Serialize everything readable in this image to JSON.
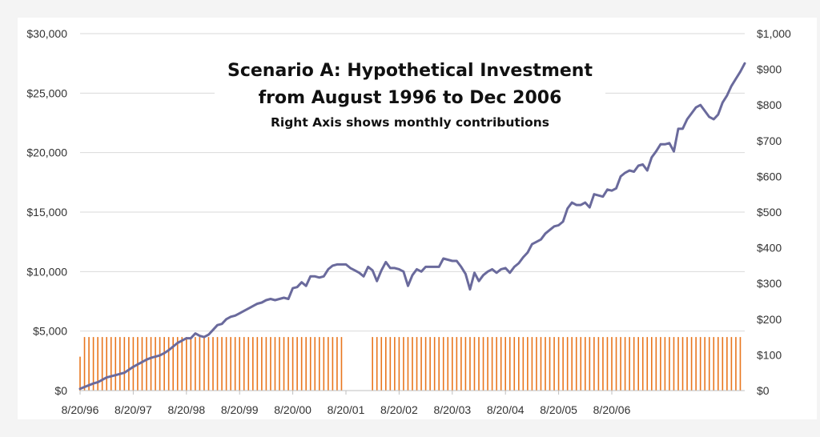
{
  "chart_data": {
    "type": "line+bar",
    "title": [
      "Scenario A: Hypothetical Investment",
      "from August 1996 to Dec 2006"
    ],
    "subtitle": "Right Axis shows monthly contributions",
    "x_tick_labels": [
      "8/20/96",
      "8/20/97",
      "8/20/98",
      "8/20/99",
      "8/20/00",
      "8/20/01",
      "8/20/02",
      "8/20/03",
      "8/20/04",
      "8/20/05",
      "8/20/06"
    ],
    "left_axis": {
      "ticks": [
        "$0",
        "$5,000",
        "$10,000",
        "$15,000",
        "$20,000",
        "$25,000",
        "$30,000"
      ],
      "range": [
        0,
        30000
      ]
    },
    "right_axis": {
      "ticks": [
        "$0",
        "$100",
        "$200",
        "$300",
        "$400",
        "$500",
        "$600",
        "$700",
        "$800",
        "$900",
        "$1,000"
      ],
      "range": [
        0,
        1000
      ]
    },
    "grid": true,
    "series": [
      {
        "kind": "line",
        "axis": "left",
        "color": "#6a6a9c",
        "points": [
          [
            "1996-08",
            150
          ],
          [
            "1996-09",
            300
          ],
          [
            "1996-10",
            450
          ],
          [
            "1996-11",
            600
          ],
          [
            "1996-12",
            700
          ],
          [
            "1997-01",
            900
          ],
          [
            "1997-02",
            1100
          ],
          [
            "1997-03",
            1200
          ],
          [
            "1997-04",
            1300
          ],
          [
            "1997-05",
            1400
          ],
          [
            "1997-06",
            1500
          ],
          [
            "1997-07",
            1750
          ],
          [
            "1997-08",
            2000
          ],
          [
            "1997-09",
            2200
          ],
          [
            "1997-10",
            2400
          ],
          [
            "1997-11",
            2600
          ],
          [
            "1997-12",
            2750
          ],
          [
            "1998-01",
            2850
          ],
          [
            "1998-02",
            2950
          ],
          [
            "1998-03",
            3150
          ],
          [
            "1998-04",
            3400
          ],
          [
            "1998-05",
            3700
          ],
          [
            "1998-06",
            4000
          ],
          [
            "1998-07",
            4200
          ],
          [
            "1998-08",
            4400
          ],
          [
            "1998-09",
            4400
          ],
          [
            "1998-10",
            4800
          ],
          [
            "1998-11",
            4600
          ],
          [
            "1998-12",
            4500
          ],
          [
            "1999-01",
            4700
          ],
          [
            "1999-02",
            5100
          ],
          [
            "1999-03",
            5500
          ],
          [
            "1999-04",
            5600
          ],
          [
            "1999-05",
            6000
          ],
          [
            "1999-06",
            6200
          ],
          [
            "1999-07",
            6300
          ],
          [
            "1999-08",
            6500
          ],
          [
            "1999-09",
            6700
          ],
          [
            "1999-10",
            6900
          ],
          [
            "1999-11",
            7100
          ],
          [
            "1999-12",
            7300
          ],
          [
            "2000-01",
            7400
          ],
          [
            "2000-02",
            7600
          ],
          [
            "2000-03",
            7700
          ],
          [
            "2000-04",
            7600
          ],
          [
            "2000-05",
            7700
          ],
          [
            "2000-06",
            7800
          ],
          [
            "2000-07",
            7700
          ],
          [
            "2000-08",
            8600
          ],
          [
            "2000-09",
            8700
          ],
          [
            "2000-10",
            9100
          ],
          [
            "2000-11",
            8800
          ],
          [
            "2000-12",
            9600
          ],
          [
            "2001-01",
            9600
          ],
          [
            "2001-02",
            9500
          ],
          [
            "2001-03",
            9600
          ],
          [
            "2001-04",
            10200
          ],
          [
            "2001-05",
            10500
          ],
          [
            "2001-06",
            10600
          ],
          [
            "2001-07",
            10600
          ],
          [
            "2001-08",
            10600
          ],
          [
            "2001-09",
            10300
          ],
          [
            "2001-10",
            10100
          ],
          [
            "2001-11",
            9900
          ],
          [
            "2001-12",
            9600
          ],
          [
            "2002-01",
            10400
          ],
          [
            "2002-02",
            10100
          ],
          [
            "2002-03",
            9200
          ],
          [
            "2002-04",
            10100
          ],
          [
            "2002-05",
            10800
          ],
          [
            "2002-06",
            10300
          ],
          [
            "2002-07",
            10300
          ],
          [
            "2002-08",
            10200
          ],
          [
            "2002-09",
            10000
          ],
          [
            "2002-10",
            8800
          ],
          [
            "2002-11",
            9700
          ],
          [
            "2002-12",
            10200
          ],
          [
            "2003-01",
            10000
          ],
          [
            "2003-02",
            10400
          ],
          [
            "2003-03",
            10400
          ],
          [
            "2003-04",
            10400
          ],
          [
            "2003-05",
            10400
          ],
          [
            "2003-06",
            11100
          ],
          [
            "2003-07",
            11000
          ],
          [
            "2003-08",
            10900
          ],
          [
            "2003-09",
            10900
          ],
          [
            "2003-10",
            10400
          ],
          [
            "2003-11",
            9800
          ],
          [
            "2003-12",
            8500
          ],
          [
            "2004-01",
            9900
          ],
          [
            "2004-02",
            9200
          ],
          [
            "2004-03",
            9700
          ],
          [
            "2004-04",
            10000
          ],
          [
            "2004-05",
            10200
          ],
          [
            "2004-06",
            9900
          ],
          [
            "2004-07",
            10200
          ],
          [
            "2004-08",
            10300
          ],
          [
            "2004-09",
            9900
          ],
          [
            "2004-10",
            10400
          ],
          [
            "2004-11",
            10700
          ],
          [
            "2004-12",
            11200
          ],
          [
            "2005-01",
            11600
          ],
          [
            "2005-02",
            12300
          ],
          [
            "2005-03",
            12500
          ],
          [
            "2005-04",
            12700
          ],
          [
            "2005-05",
            13200
          ],
          [
            "2005-06",
            13500
          ],
          [
            "2005-07",
            13800
          ],
          [
            "2005-08",
            13900
          ],
          [
            "2005-09",
            14200
          ],
          [
            "2005-10",
            15300
          ],
          [
            "2005-11",
            15800
          ],
          [
            "2005-12",
            15600
          ],
          [
            "2006-01",
            15600
          ],
          [
            "2006-02",
            15800
          ],
          [
            "2006-03",
            15400
          ],
          [
            "2006-04",
            16500
          ],
          [
            "2006-05",
            16400
          ],
          [
            "2006-06",
            16300
          ],
          [
            "2006-07",
            16900
          ],
          [
            "2006-08",
            16800
          ],
          [
            "2006-09",
            17000
          ],
          [
            "2006-10",
            18000
          ],
          [
            "2006-11",
            18300
          ],
          [
            "2006-12",
            18500
          ],
          [
            "2007-01",
            18400
          ],
          [
            "2007-02",
            18900
          ],
          [
            "2007-03",
            19000
          ],
          [
            "2007-04",
            18500
          ],
          [
            "2007-05",
            19600
          ],
          [
            "2007-06",
            20100
          ],
          [
            "2007-07",
            20700
          ],
          [
            "2007-08",
            20700
          ],
          [
            "2007-09",
            20800
          ],
          [
            "2007-10",
            20100
          ],
          [
            "2007-11",
            22000
          ],
          [
            "2007-12",
            22000
          ],
          [
            "2008-01",
            22800
          ],
          [
            "2008-02",
            23300
          ],
          [
            "2008-03",
            23800
          ],
          [
            "2008-04",
            24000
          ],
          [
            "2008-05",
            23500
          ],
          [
            "2008-06",
            23000
          ],
          [
            "2008-07",
            22800
          ],
          [
            "2008-08",
            23200
          ],
          [
            "2008-09",
            24200
          ],
          [
            "2008-10",
            24800
          ],
          [
            "2008-11",
            25600
          ],
          [
            "2008-12",
            26200
          ],
          [
            "2009-01",
            26800
          ],
          [
            "2009-02",
            27500
          ]
        ]
      },
      {
        "kind": "bar",
        "axis": "right",
        "color": "#e8761e",
        "monthly_contribution": 150,
        "first_contribution": 95,
        "gaps": [
          "2001-08",
          "2001-09",
          "2001-10",
          "2001-11",
          "2001-12",
          "2002-01"
        ]
      }
    ]
  }
}
